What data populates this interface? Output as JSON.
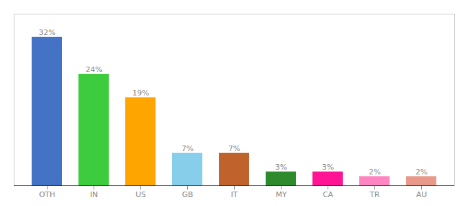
{
  "chart_data": {
    "type": "bar",
    "categories": [
      "OTH",
      "IN",
      "US",
      "GB",
      "IT",
      "MY",
      "CA",
      "TR",
      "AU"
    ],
    "values": [
      32,
      24,
      19,
      7,
      7,
      3,
      3,
      2,
      2
    ],
    "value_labels": [
      "32%",
      "24%",
      "19%",
      "7%",
      "7%",
      "3%",
      "3%",
      "2%",
      "2%"
    ],
    "colors": [
      "#4472c4",
      "#3dcc3d",
      "#ffa500",
      "#87ceeb",
      "#c0622b",
      "#2d8a2d",
      "#ff1493",
      "#ff85c2",
      "#e8998a"
    ],
    "ylim": [
      0,
      37
    ],
    "data_labels": true,
    "tick_labels": "x",
    "grid": false
  }
}
